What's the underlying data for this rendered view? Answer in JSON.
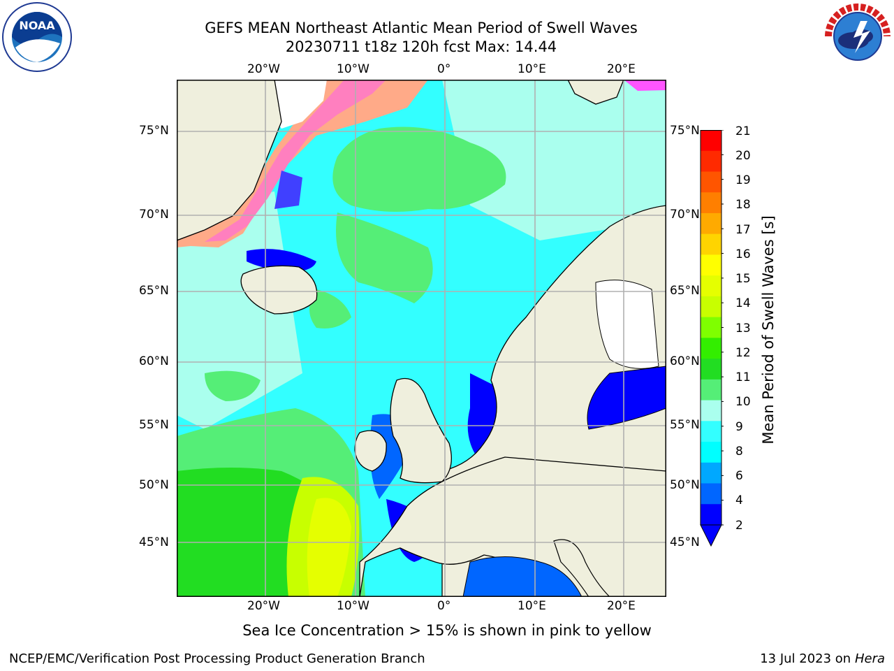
{
  "title": {
    "line1": "GEFS MEAN Northeast Atlantic Mean Period of Swell Waves",
    "line2": "20230711 t18z 120h fcst   Max: 14.44"
  },
  "logos": {
    "noaa": "NOAA",
    "nws": "NATIONAL WEATHER SERVICE"
  },
  "map": {
    "lon_ticks_top": [
      "20°W",
      "10°W",
      "0°",
      "10°E",
      "20°E"
    ],
    "lon_ticks_bottom": [
      "20°W",
      "10°W",
      "0°",
      "10°E",
      "20°E"
    ],
    "lat_ticks_left": [
      "75°N",
      "70°N",
      "65°N",
      "60°N",
      "55°N",
      "50°N",
      "45°N"
    ],
    "lat_ticks_right": [
      "75°N",
      "70°N",
      "65°N",
      "60°N",
      "55°N",
      "50°N",
      "45°N"
    ]
  },
  "colorbar": {
    "label": "Mean Period of Swell Waves [s]",
    "ticks": [
      "21",
      "20",
      "19",
      "18",
      "17",
      "16",
      "15",
      "14",
      "13",
      "12",
      "11",
      "10",
      "9",
      "8",
      "6",
      "4",
      "2"
    ],
    "colors": [
      "#ff0000",
      "#ff2a00",
      "#ff5500",
      "#ff7f00",
      "#ffaa00",
      "#ffd400",
      "#ffff00",
      "#e5ff00",
      "#c8ff00",
      "#7fff00",
      "#33ee00",
      "#22dd22",
      "#55ee77",
      "#aaffee",
      "#33ffff",
      "#00ffff",
      "#00a8ff",
      "#0066ff",
      "#0000ff"
    ]
  },
  "note": "Sea Ice Concentration > 15% is shown in pink to yellow",
  "footer": {
    "left": "NCEP/EMC/Verification Post Processing Product Generation Branch",
    "right_date": "13 Jul 2023 on ",
    "right_host": "Hera"
  }
}
